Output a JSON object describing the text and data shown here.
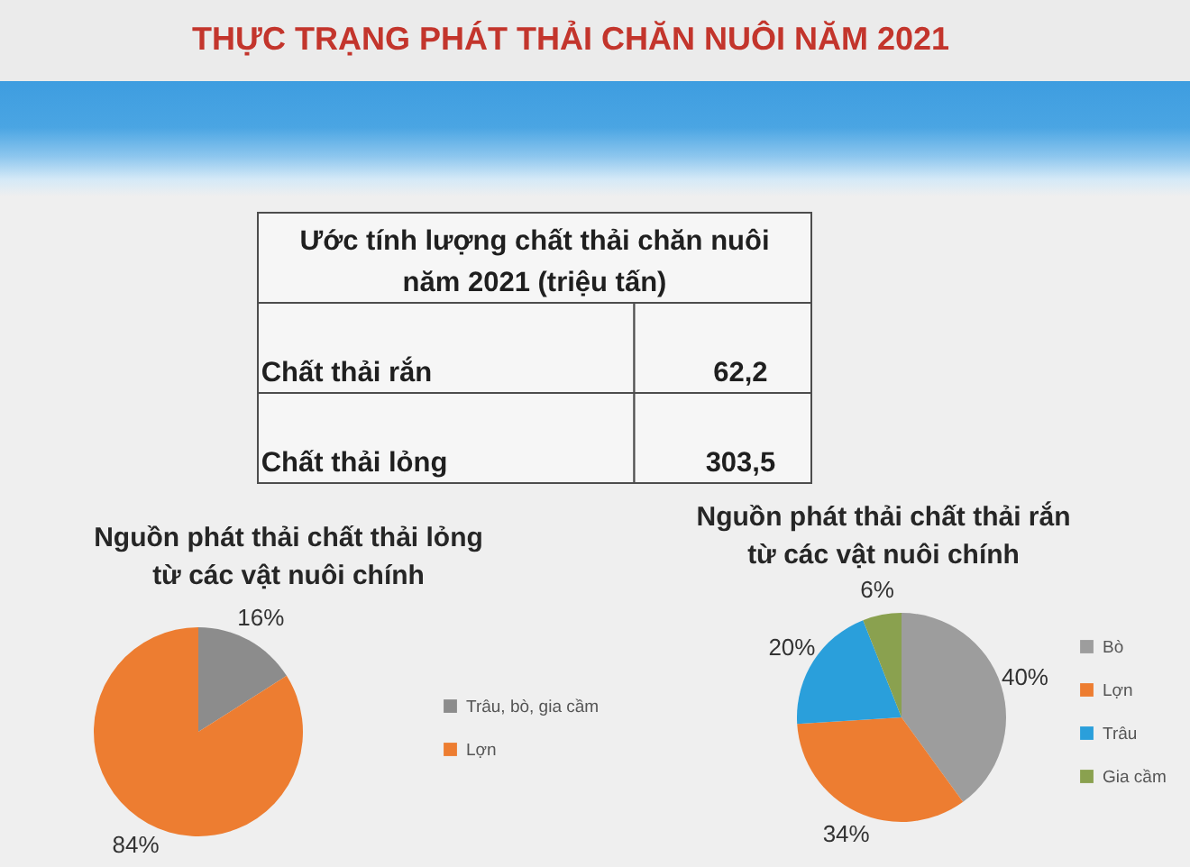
{
  "chart_data": [
    {
      "type": "other",
      "title": "THỰC TRẠNG PHÁT THẢI CHĂN NUÔI NĂM 2021",
      "subtitle": "Ước tính lượng chất thải chăn nuôi\nnăm 2021 (triệu tấn)",
      "categories": [
        "Chất thải rắn",
        "Chất thải lỏng"
      ],
      "values": [
        62.2,
        303.5
      ],
      "value_labels": [
        "62,2",
        "303,5"
      ]
    },
    {
      "type": "pie",
      "title": "Nguồn phát thải chất thải lỏng\ntừ các vật nuôi chính",
      "categories": [
        "Trâu, bò, gia cầm",
        "Lợn"
      ],
      "values": [
        16,
        84
      ],
      "colors": [
        "#8c8c8c",
        "#ed7d31"
      ],
      "value_labels": [
        "16%",
        "84%"
      ],
      "legend": "right"
    },
    {
      "type": "pie",
      "title": "Nguồn phát thải chất thải rắn\ntừ các vật nuôi chính",
      "categories": [
        "Bò",
        "Lợn",
        "Trâu",
        "Gia cầm"
      ],
      "values": [
        40,
        34,
        20,
        6
      ],
      "colors": [
        "#9d9d9d",
        "#ed7d31",
        "#2a9fdb",
        "#8aa14f"
      ],
      "value_labels": [
        "40%",
        "34%",
        "20%",
        "6%"
      ],
      "legend": "right"
    }
  ]
}
